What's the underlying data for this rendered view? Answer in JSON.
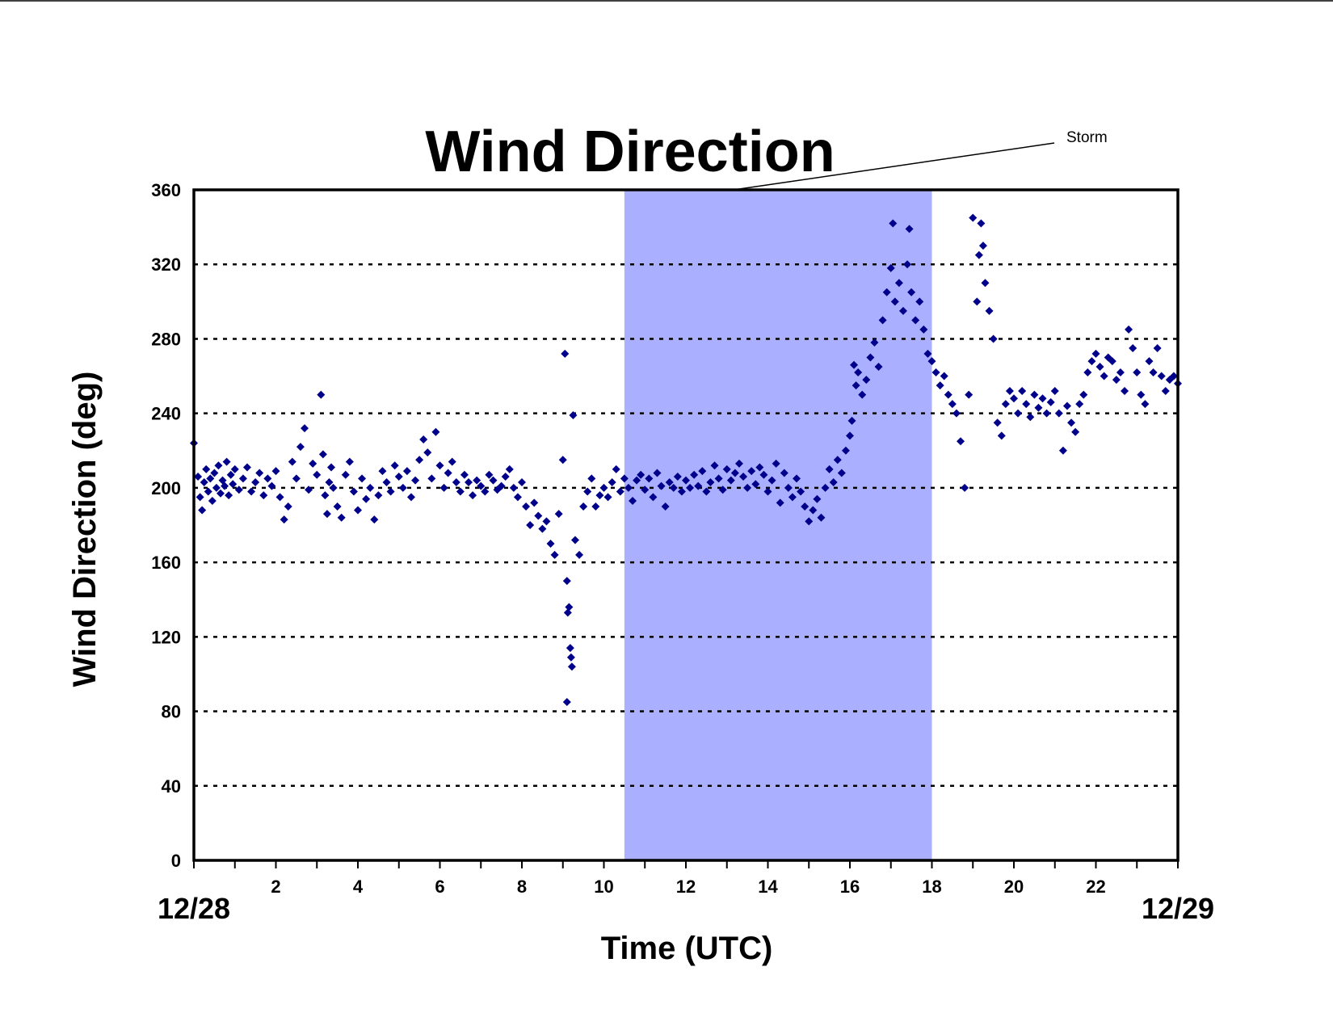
{
  "chart_data": {
    "type": "scatter",
    "title": "Wind Direction",
    "xlabel": "Time (UTC)",
    "ylabel": "Wind Direction (deg)",
    "xlim": [
      0,
      24
    ],
    "ylim": [
      0,
      360
    ],
    "yticks": [
      0,
      40,
      80,
      120,
      160,
      200,
      240,
      280,
      320,
      360
    ],
    "xticks": [
      2,
      4,
      6,
      8,
      10,
      12,
      14,
      16,
      18,
      20,
      22
    ],
    "date_start_label": "12/28",
    "date_end_label": "12/29",
    "grid": "horizontal dotted",
    "shaded_region": {
      "label": "Storm",
      "x_start": 10.5,
      "x_end": 18,
      "color": "#aab0ff"
    },
    "marker_color": "#00008b",
    "points": [
      [
        0.0,
        224
      ],
      [
        0.1,
        206
      ],
      [
        0.15,
        195
      ],
      [
        0.2,
        188
      ],
      [
        0.25,
        203
      ],
      [
        0.3,
        210
      ],
      [
        0.35,
        198
      ],
      [
        0.4,
        205
      ],
      [
        0.45,
        193
      ],
      [
        0.5,
        208
      ],
      [
        0.55,
        200
      ],
      [
        0.6,
        212
      ],
      [
        0.65,
        197
      ],
      [
        0.7,
        204
      ],
      [
        0.75,
        201
      ],
      [
        0.8,
        214
      ],
      [
        0.85,
        196
      ],
      [
        0.9,
        207
      ],
      [
        0.95,
        202
      ],
      [
        1.0,
        210
      ],
      [
        1.1,
        199
      ],
      [
        1.2,
        205
      ],
      [
        1.3,
        211
      ],
      [
        1.4,
        198
      ],
      [
        1.5,
        203
      ],
      [
        1.6,
        208
      ],
      [
        1.7,
        196
      ],
      [
        1.8,
        205
      ],
      [
        1.9,
        201
      ],
      [
        2.0,
        209
      ],
      [
        2.1,
        195
      ],
      [
        2.2,
        183
      ],
      [
        2.3,
        190
      ],
      [
        2.4,
        214
      ],
      [
        2.5,
        205
      ],
      [
        2.6,
        222
      ],
      [
        2.7,
        232
      ],
      [
        2.8,
        199
      ],
      [
        2.9,
        213
      ],
      [
        3.0,
        207
      ],
      [
        3.1,
        250
      ],
      [
        3.15,
        218
      ],
      [
        3.2,
        196
      ],
      [
        3.25,
        186
      ],
      [
        3.3,
        203
      ],
      [
        3.35,
        211
      ],
      [
        3.4,
        200
      ],
      [
        3.5,
        190
      ],
      [
        3.6,
        184
      ],
      [
        3.7,
        207
      ],
      [
        3.8,
        214
      ],
      [
        3.9,
        198
      ],
      [
        4.0,
        188
      ],
      [
        4.1,
        205
      ],
      [
        4.2,
        194
      ],
      [
        4.3,
        200
      ],
      [
        4.4,
        183
      ],
      [
        4.5,
        196
      ],
      [
        4.6,
        209
      ],
      [
        4.7,
        203
      ],
      [
        4.8,
        198
      ],
      [
        4.9,
        212
      ],
      [
        5.0,
        206
      ],
      [
        5.1,
        200
      ],
      [
        5.2,
        209
      ],
      [
        5.3,
        195
      ],
      [
        5.4,
        204
      ],
      [
        5.5,
        215
      ],
      [
        5.6,
        226
      ],
      [
        5.7,
        219
      ],
      [
        5.8,
        205
      ],
      [
        5.9,
        230
      ],
      [
        6.0,
        212
      ],
      [
        6.1,
        200
      ],
      [
        6.2,
        208
      ],
      [
        6.3,
        214
      ],
      [
        6.4,
        203
      ],
      [
        6.5,
        198
      ],
      [
        6.6,
        207
      ],
      [
        6.7,
        203
      ],
      [
        6.8,
        196
      ],
      [
        6.9,
        204
      ],
      [
        7.0,
        201
      ],
      [
        7.1,
        198
      ],
      [
        7.2,
        207
      ],
      [
        7.3,
        204
      ],
      [
        7.4,
        199
      ],
      [
        7.5,
        201
      ],
      [
        7.6,
        206
      ],
      [
        7.7,
        210
      ],
      [
        7.8,
        200
      ],
      [
        7.9,
        195
      ],
      [
        8.0,
        203
      ],
      [
        8.1,
        190
      ],
      [
        8.2,
        180
      ],
      [
        8.3,
        192
      ],
      [
        8.4,
        185
      ],
      [
        8.5,
        178
      ],
      [
        8.6,
        182
      ],
      [
        8.7,
        170
      ],
      [
        8.8,
        164
      ],
      [
        8.9,
        186
      ],
      [
        9.0,
        215
      ],
      [
        9.05,
        272
      ],
      [
        9.1,
        150
      ],
      [
        9.12,
        133
      ],
      [
        9.15,
        136
      ],
      [
        9.18,
        114
      ],
      [
        9.2,
        109
      ],
      [
        9.22,
        104
      ],
      [
        9.1,
        85
      ],
      [
        9.25,
        239
      ],
      [
        9.3,
        172
      ],
      [
        9.4,
        164
      ],
      [
        9.5,
        190
      ],
      [
        9.6,
        198
      ],
      [
        9.7,
        205
      ],
      [
        9.8,
        190
      ],
      [
        9.9,
        196
      ],
      [
        10.0,
        200
      ],
      [
        10.1,
        195
      ],
      [
        10.2,
        203
      ],
      [
        10.3,
        210
      ],
      [
        10.4,
        198
      ],
      [
        10.5,
        205
      ],
      [
        10.6,
        200
      ],
      [
        10.7,
        193
      ],
      [
        10.8,
        204
      ],
      [
        10.9,
        207
      ],
      [
        11.0,
        199
      ],
      [
        11.1,
        205
      ],
      [
        11.2,
        195
      ],
      [
        11.3,
        208
      ],
      [
        11.4,
        201
      ],
      [
        11.5,
        190
      ],
      [
        11.6,
        203
      ],
      [
        11.7,
        200
      ],
      [
        11.8,
        206
      ],
      [
        11.9,
        198
      ],
      [
        12.0,
        204
      ],
      [
        12.1,
        200
      ],
      [
        12.2,
        207
      ],
      [
        12.3,
        201
      ],
      [
        12.4,
        209
      ],
      [
        12.5,
        198
      ],
      [
        12.6,
        203
      ],
      [
        12.7,
        212
      ],
      [
        12.8,
        205
      ],
      [
        12.9,
        199
      ],
      [
        13.0,
        210
      ],
      [
        13.1,
        204
      ],
      [
        13.2,
        208
      ],
      [
        13.3,
        213
      ],
      [
        13.4,
        206
      ],
      [
        13.5,
        200
      ],
      [
        13.6,
        209
      ],
      [
        13.7,
        202
      ],
      [
        13.8,
        211
      ],
      [
        13.9,
        207
      ],
      [
        14.0,
        198
      ],
      [
        14.1,
        204
      ],
      [
        14.2,
        213
      ],
      [
        14.3,
        192
      ],
      [
        14.4,
        208
      ],
      [
        14.5,
        200
      ],
      [
        14.6,
        195
      ],
      [
        14.7,
        205
      ],
      [
        14.8,
        198
      ],
      [
        14.9,
        190
      ],
      [
        15.0,
        182
      ],
      [
        15.1,
        188
      ],
      [
        15.2,
        194
      ],
      [
        15.3,
        184
      ],
      [
        15.4,
        200
      ],
      [
        15.5,
        210
      ],
      [
        15.6,
        203
      ],
      [
        15.7,
        215
      ],
      [
        15.8,
        208
      ],
      [
        15.9,
        220
      ],
      [
        16.0,
        228
      ],
      [
        16.05,
        236
      ],
      [
        16.1,
        266
      ],
      [
        16.15,
        255
      ],
      [
        16.2,
        262
      ],
      [
        16.3,
        250
      ],
      [
        16.4,
        258
      ],
      [
        16.5,
        270
      ],
      [
        16.6,
        278
      ],
      [
        16.7,
        265
      ],
      [
        16.8,
        290
      ],
      [
        16.9,
        305
      ],
      [
        17.0,
        318
      ],
      [
        17.05,
        342
      ],
      [
        17.1,
        300
      ],
      [
        17.2,
        310
      ],
      [
        17.3,
        295
      ],
      [
        17.4,
        320
      ],
      [
        17.45,
        339
      ],
      [
        17.5,
        305
      ],
      [
        17.6,
        290
      ],
      [
        17.7,
        300
      ],
      [
        17.8,
        285
      ],
      [
        17.9,
        272
      ],
      [
        18.0,
        268
      ],
      [
        18.1,
        262
      ],
      [
        18.2,
        255
      ],
      [
        18.3,
        260
      ],
      [
        18.4,
        250
      ],
      [
        18.5,
        245
      ],
      [
        18.6,
        240
      ],
      [
        18.7,
        225
      ],
      [
        18.8,
        200
      ],
      [
        18.9,
        250
      ],
      [
        19.0,
        345
      ],
      [
        19.1,
        300
      ],
      [
        19.15,
        325
      ],
      [
        19.2,
        342
      ],
      [
        19.25,
        330
      ],
      [
        19.3,
        310
      ],
      [
        19.4,
        295
      ],
      [
        19.5,
        280
      ],
      [
        19.6,
        235
      ],
      [
        19.7,
        228
      ],
      [
        19.8,
        245
      ],
      [
        19.9,
        252
      ],
      [
        20.0,
        248
      ],
      [
        20.1,
        240
      ],
      [
        20.2,
        252
      ],
      [
        20.3,
        245
      ],
      [
        20.4,
        238
      ],
      [
        20.5,
        250
      ],
      [
        20.6,
        243
      ],
      [
        20.7,
        248
      ],
      [
        20.8,
        240
      ],
      [
        20.9,
        246
      ],
      [
        21.0,
        252
      ],
      [
        21.1,
        240
      ],
      [
        21.2,
        220
      ],
      [
        21.3,
        244
      ],
      [
        21.4,
        235
      ],
      [
        21.5,
        230
      ],
      [
        21.6,
        245
      ],
      [
        21.7,
        250
      ],
      [
        21.8,
        262
      ],
      [
        21.9,
        268
      ],
      [
        22.0,
        272
      ],
      [
        22.1,
        265
      ],
      [
        22.2,
        260
      ],
      [
        22.3,
        270
      ],
      [
        22.4,
        268
      ],
      [
        22.5,
        258
      ],
      [
        22.6,
        262
      ],
      [
        22.7,
        252
      ],
      [
        22.8,
        285
      ],
      [
        22.9,
        275
      ],
      [
        23.0,
        262
      ],
      [
        23.1,
        250
      ],
      [
        23.2,
        245
      ],
      [
        23.3,
        268
      ],
      [
        23.4,
        262
      ],
      [
        23.5,
        275
      ],
      [
        23.6,
        260
      ],
      [
        23.7,
        252
      ],
      [
        23.8,
        258
      ],
      [
        23.9,
        260
      ],
      [
        24.0,
        256
      ]
    ]
  }
}
